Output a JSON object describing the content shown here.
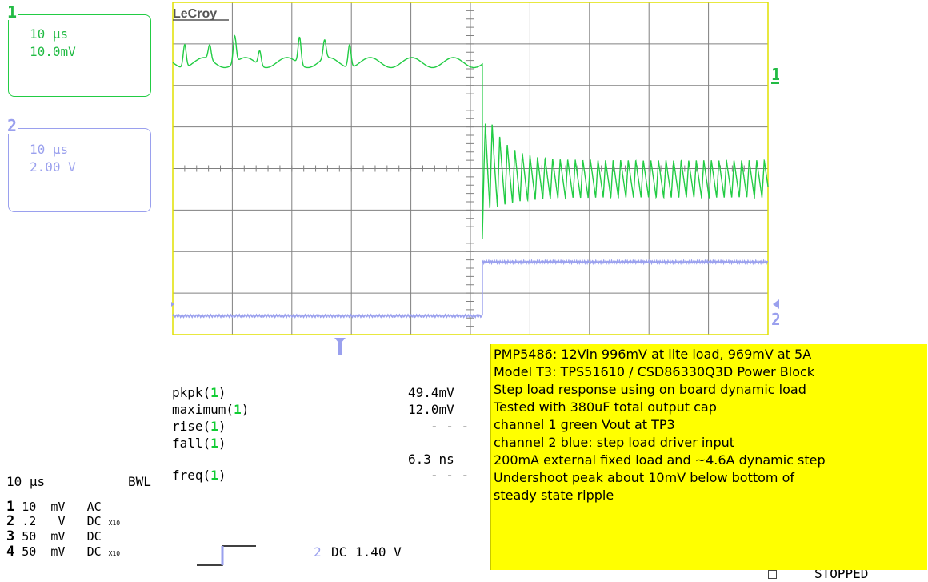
{
  "brand": "LeCroy",
  "channels": [
    {
      "num": "1",
      "timebase": "10 µs",
      "scale": "10.0mV",
      "color": "#22cc44"
    },
    {
      "num": "2",
      "timebase": "10 µs",
      "scale": "2.00 V",
      "color": "#9aa0ee"
    }
  ],
  "markers": {
    "ch1_right": "1",
    "ch2_right": "2"
  },
  "measurements": [
    {
      "name": "pkpk(",
      "ch": "1",
      "close": ")",
      "value": "49.4mV"
    },
    {
      "name": "maximum(",
      "ch": "1",
      "close": ")",
      "value": "12.0mV"
    },
    {
      "name": "rise(",
      "ch": "1",
      "close": ")",
      "value": "- - -"
    },
    {
      "name": "fall(",
      "ch": "1",
      "close": ")",
      "value": "6.3 ns"
    },
    {
      "name": "freq(",
      "ch": "1",
      "close": ")",
      "value": "- - -"
    }
  ],
  "timebase": {
    "value": "10 µs",
    "bwl": "BWL"
  },
  "channel_settings": [
    {
      "num": "1",
      "vdiv": "10",
      "unit": "mV",
      "coupling": "AC",
      "probe": ""
    },
    {
      "num": "2",
      "vdiv": ".2",
      "unit": "V",
      "coupling": "DC",
      "probe": "X10"
    },
    {
      "num": "3",
      "vdiv": "50",
      "unit": "mV",
      "coupling": "DC",
      "probe": ""
    },
    {
      "num": "4",
      "vdiv": "50",
      "unit": "mV",
      "coupling": "DC",
      "probe": "X10"
    }
  ],
  "trigger": {
    "channel": "2",
    "coupling": "DC",
    "level": "1.40 V"
  },
  "status": "STOPPED",
  "note_lines": [
    "PMP5486: 12Vin  996mV at lite load, 969mV at 5A",
    "Model T3: TPS51610 / CSD86330Q3D Power Block",
    "Step load response using on board dynamic load",
    "Tested with 380uF total output cap",
    "channel 1 green Vout at TP3",
    "channel 2 blue: step load driver input",
    "200mA external fixed load and ~4.6A dynamic step",
    "Undershoot peak about 10mV below bottom of",
    "steady state ripple"
  ],
  "chart_data": {
    "type": "line",
    "title": "",
    "xlabel": "",
    "ylabel": "",
    "divisions": {
      "x": 10,
      "y": 8
    },
    "grid": true,
    "step_time_div": 5.2,
    "series": [
      {
        "name": "1",
        "color": "#22cc44",
        "unit": "div",
        "pre_step": {
          "baseline_div": 6.55,
          "peaks_div": [
            7.1,
            6.9,
            7.2,
            6.9,
            7.2,
            7.0,
            7.1
          ],
          "peak_period_div": 0.42
        },
        "undershoot_div": 2.3,
        "overshoot_div": 5.2,
        "steady_ripple": {
          "center_div": 3.75,
          "amplitude_div": 0.45,
          "period_div": 0.127
        }
      },
      {
        "name": "2",
        "color": "#9aa0ee",
        "unit": "div",
        "low_level_div": 0.45,
        "high_level_div": 1.75
      }
    ]
  }
}
